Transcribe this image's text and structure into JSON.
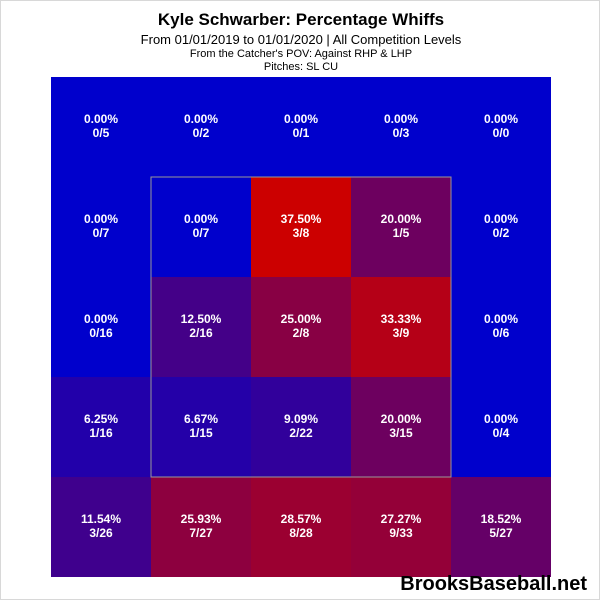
{
  "header": {
    "title": "Kyle Schwarber: Percentage Whiffs",
    "subtitle": "From 01/01/2019 to 01/01/2020 | All Competition Levels",
    "pov": "From the Catcher's POV:  Against RHP & LHP",
    "pitches": "Pitches:  SL  CU"
  },
  "brand": "BrooksBaseball.net",
  "colors": {
    "low": "#0000cc",
    "high": "#cc0000",
    "strike_zone_border": "#999999",
    "cell_text": "#ffffff"
  },
  "chart_data": {
    "type": "heatmap",
    "title": "Kyle Schwarber: Percentage Whiffs",
    "rows": 5,
    "cols": 5,
    "strike_zone": "inner 3x3 cells (rows 2-4, columns 2-4)",
    "legend": "none",
    "grid": false,
    "cells": [
      [
        {
          "pct": "0.00%",
          "value": 0.0,
          "count": "0/5"
        },
        {
          "pct": "0.00%",
          "value": 0.0,
          "count": "0/2"
        },
        {
          "pct": "0.00%",
          "value": 0.0,
          "count": "0/1"
        },
        {
          "pct": "0.00%",
          "value": 0.0,
          "count": "0/3"
        },
        {
          "pct": "0.00%",
          "value": 0.0,
          "count": "0/0"
        }
      ],
      [
        {
          "pct": "0.00%",
          "value": 0.0,
          "count": "0/7"
        },
        {
          "pct": "0.00%",
          "value": 0.0,
          "count": "0/7"
        },
        {
          "pct": "37.50%",
          "value": 37.5,
          "count": "3/8"
        },
        {
          "pct": "20.00%",
          "value": 20.0,
          "count": "1/5"
        },
        {
          "pct": "0.00%",
          "value": 0.0,
          "count": "0/2"
        }
      ],
      [
        {
          "pct": "0.00%",
          "value": 0.0,
          "count": "0/16"
        },
        {
          "pct": "12.50%",
          "value": 12.5,
          "count": "2/16"
        },
        {
          "pct": "25.00%",
          "value": 25.0,
          "count": "2/8"
        },
        {
          "pct": "33.33%",
          "value": 33.33,
          "count": "3/9"
        },
        {
          "pct": "0.00%",
          "value": 0.0,
          "count": "0/6"
        }
      ],
      [
        {
          "pct": "6.25%",
          "value": 6.25,
          "count": "1/16"
        },
        {
          "pct": "6.67%",
          "value": 6.67,
          "count": "1/15"
        },
        {
          "pct": "9.09%",
          "value": 9.09,
          "count": "2/22"
        },
        {
          "pct": "20.00%",
          "value": 20.0,
          "count": "3/15"
        },
        {
          "pct": "0.00%",
          "value": 0.0,
          "count": "0/4"
        }
      ],
      [
        {
          "pct": "11.54%",
          "value": 11.54,
          "count": "3/26"
        },
        {
          "pct": "25.93%",
          "value": 25.93,
          "count": "7/27"
        },
        {
          "pct": "28.57%",
          "value": 28.57,
          "count": "8/28"
        },
        {
          "pct": "27.27%",
          "value": 27.27,
          "count": "9/33"
        },
        {
          "pct": "18.52%",
          "value": 18.52,
          "count": "5/27"
        }
      ]
    ]
  }
}
